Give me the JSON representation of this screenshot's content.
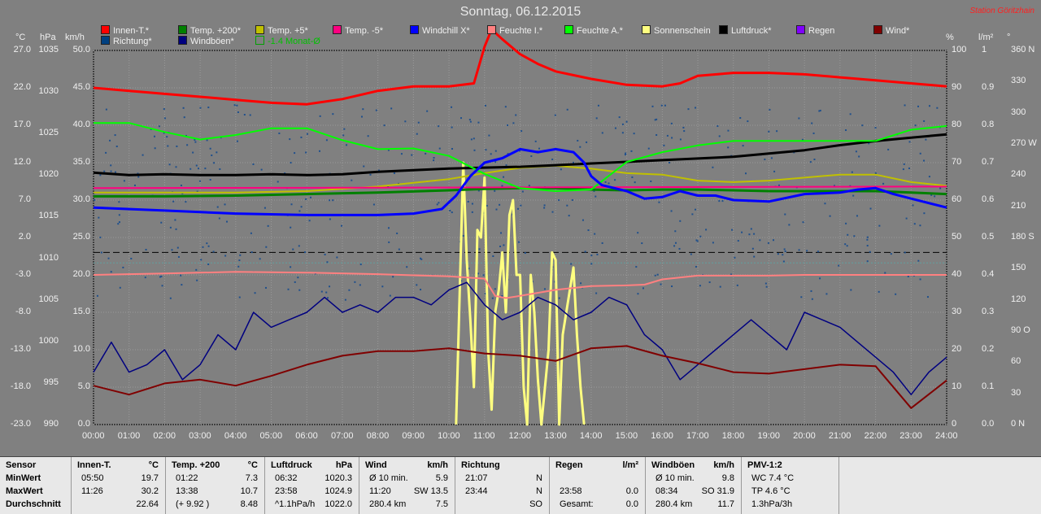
{
  "title": "Sonntag, 06.12.2015",
  "station": "Station Göritzhain",
  "units": {
    "c": "°C",
    "hpa": "hPa",
    "kmh": "km/h",
    "pct": "%",
    "lm2": "l/m²",
    "deg": "°"
  },
  "legend": [
    {
      "label": "Innen-T.*",
      "color": "#ff0000"
    },
    {
      "label": "Temp. +200*",
      "color": "#008000"
    },
    {
      "label": "Temp. +5*",
      "color": "#c0c000"
    },
    {
      "label": "Temp. -5*",
      "color": "#ff0080"
    },
    {
      "label": "Windchill X*",
      "color": "#0000ff"
    },
    {
      "label": "Feuchte I.*",
      "color": "#ff8080"
    },
    {
      "label": "Feuchte A.*",
      "color": "#00ff00"
    },
    {
      "label": "Sonnenschein",
      "color": "#ffff80"
    },
    {
      "label": "Luftdruck*",
      "color": "#000000"
    },
    {
      "label": "Regen",
      "color": "#8000ff"
    },
    {
      "label": "Wind*",
      "color": "#800000"
    },
    {
      "label": "Richtung*",
      "color": "#004080"
    },
    {
      "label": "Windböen*",
      "color": "#000080"
    },
    {
      "label": "-1.4 Monat-Ø",
      "color": "#00a000",
      "outline": true
    }
  ],
  "chart_data": {
    "type": "line",
    "x_ticks": [
      "00:00",
      "01:00",
      "02:00",
      "03:00",
      "04:00",
      "05:00",
      "06:00",
      "07:00",
      "08:00",
      "09:00",
      "10:00",
      "11:00",
      "12:00",
      "13:00",
      "14:00",
      "15:00",
      "16:00",
      "17:00",
      "18:00",
      "19:00",
      "20:00",
      "21:00",
      "22:00",
      "23:00",
      "24:00"
    ],
    "axis_c": [
      "27.0",
      "22.0",
      "17.0",
      "12.0",
      "7.0",
      "2.0",
      "-3.0",
      "-8.0",
      "-13.0",
      "-18.0",
      "-23.0"
    ],
    "axis_hpa": [
      "1035",
      "1030",
      "1025",
      "1020",
      "1015",
      "1010",
      "1005",
      "1000",
      "995",
      "990"
    ],
    "axis_kmh": [
      "50.0",
      "45.0",
      "40.0",
      "35.0",
      "30.0",
      "25.0",
      "20.0",
      "15.0",
      "10.0",
      "5.0",
      "0.0"
    ],
    "axis_pct": [
      "100",
      "90",
      "80",
      "70",
      "60",
      "50",
      "40",
      "30",
      "20",
      "10",
      "0"
    ],
    "axis_lm2": [
      "1",
      "0.9",
      "0.8",
      "0.7",
      "0.6",
      "0.5",
      "0.4",
      "0.3",
      "0.2",
      "0.1",
      "0.0"
    ],
    "axis_deg": [
      "360 N",
      "330",
      "300",
      "270 W",
      "240",
      "210",
      "180 S",
      "150",
      "120",
      "90 O",
      "60",
      "30",
      "0 N"
    ],
    "xlim": [
      0,
      24
    ],
    "series": [
      {
        "name": "Innen-T.*",
        "axis": "c",
        "x": [
          0,
          1,
          2,
          3,
          4,
          5,
          6,
          7,
          8,
          9,
          10,
          10.7,
          11,
          11.2,
          11.5,
          12,
          12.5,
          13,
          14,
          15,
          16,
          16.5,
          17,
          18,
          19,
          20,
          21,
          22,
          23,
          24
        ],
        "y": [
          22.0,
          21.6,
          21.2,
          20.8,
          20.4,
          20.0,
          19.8,
          20.5,
          21.6,
          22.2,
          22.2,
          22.6,
          27.5,
          29.8,
          28.5,
          26.5,
          25.2,
          24.2,
          23.2,
          22.4,
          22.2,
          22.6,
          23.6,
          24.0,
          24.0,
          23.8,
          23.4,
          23.0,
          22.6,
          22.2
        ]
      },
      {
        "name": "Temp. +200*",
        "axis": "c",
        "x": [
          0,
          2,
          4,
          6,
          8,
          10,
          11,
          12,
          13,
          14,
          15,
          16,
          17,
          18,
          19,
          20,
          21,
          22,
          23,
          24
        ],
        "y": [
          7.5,
          7.5,
          7.6,
          7.8,
          8.0,
          8.3,
          8.5,
          8.6,
          8.6,
          8.4,
          8.3,
          8.4,
          8.4,
          8.3,
          8.2,
          8.2,
          8.2,
          8.2,
          8.0,
          7.8
        ]
      },
      {
        "name": "Temp. +5*",
        "axis": "c",
        "x": [
          0,
          2,
          4,
          6,
          8,
          9,
          10,
          11,
          12,
          13,
          14,
          15,
          16,
          17,
          18,
          19,
          20,
          21,
          22,
          23,
          24
        ],
        "y": [
          8.0,
          8.0,
          8.0,
          8.2,
          8.8,
          9.3,
          9.8,
          10.6,
          11.3,
          11.6,
          11.2,
          10.6,
          10.4,
          9.6,
          9.4,
          9.6,
          10.0,
          10.4,
          10.4,
          9.4,
          8.9
        ]
      },
      {
        "name": "Temp. -5*",
        "axis": "c",
        "x": [
          0,
          24
        ],
        "y": [
          8.6,
          8.8
        ]
      },
      {
        "name": "Windchill X*",
        "axis": "c",
        "x": [
          0,
          2,
          4,
          6,
          8,
          9,
          9.8,
          10.2,
          10.6,
          11,
          11.5,
          12,
          12.5,
          13,
          13.5,
          13.8,
          14,
          14.3,
          15,
          15.5,
          16,
          16.5,
          17,
          17.5,
          18,
          19,
          20,
          21,
          21.5,
          22,
          22.5,
          23,
          24
        ],
        "y": [
          6.0,
          5.6,
          5.2,
          5.0,
          5.0,
          5.2,
          5.8,
          7.6,
          10.2,
          12.0,
          12.6,
          13.8,
          13.4,
          13.8,
          13.4,
          12.0,
          10.2,
          9.0,
          8.2,
          7.2,
          7.4,
          8.2,
          7.6,
          7.6,
          7.0,
          6.8,
          7.8,
          8.0,
          8.4,
          8.6,
          7.8,
          7.2,
          6.0
        ]
      },
      {
        "name": "Feuchte I.*",
        "axis": "pct",
        "x": [
          0,
          2,
          4,
          6,
          8,
          10,
          11,
          11.3,
          11.6,
          12,
          13,
          14,
          15,
          15.5,
          16,
          17,
          18,
          19,
          20,
          21,
          22,
          23,
          24
        ],
        "y": [
          40.0,
          40.4,
          40.8,
          40.6,
          40.2,
          39.6,
          39.0,
          34.4,
          33.8,
          34.4,
          36.0,
          37.0,
          37.2,
          37.4,
          38.8,
          39.8,
          39.8,
          39.8,
          40.0,
          40.0,
          40.0,
          40.0,
          40.0
        ]
      },
      {
        "name": "Feuchte A.*",
        "axis": "pct",
        "x": [
          0,
          1,
          2,
          3,
          4,
          5,
          6,
          7,
          8,
          9,
          10,
          11,
          12,
          13,
          14,
          15,
          16,
          17,
          18,
          19,
          20,
          21,
          22,
          23,
          24
        ],
        "y": [
          80.6,
          80.6,
          78.2,
          76.2,
          77.4,
          79.2,
          79.2,
          76.0,
          73.6,
          73.8,
          71.8,
          67.0,
          63.2,
          62.4,
          62.8,
          70.2,
          72.8,
          74.6,
          75.8,
          75.8,
          75.8,
          75.8,
          75.8,
          78.8,
          79.8
        ]
      },
      {
        "name": "Luftdruck*",
        "axis": "hpa",
        "x": [
          0,
          1,
          2,
          3,
          4,
          5,
          6,
          7,
          8,
          9,
          10,
          11,
          12,
          13,
          14,
          15,
          16,
          17,
          18,
          19,
          20,
          21,
          22,
          23,
          24
        ],
        "y": [
          1020.3,
          1020.0,
          1020.1,
          1020.0,
          1020.0,
          1020.1,
          1020.0,
          1020.1,
          1020.4,
          1020.6,
          1020.8,
          1020.9,
          1021.0,
          1021.2,
          1021.4,
          1021.6,
          1021.8,
          1022.0,
          1022.2,
          1022.6,
          1023.0,
          1023.6,
          1024.1,
          1024.5,
          1024.9
        ]
      },
      {
        "name": "Windböen*",
        "axis": "kmh",
        "x": [
          0,
          0.5,
          1,
          1.5,
          2,
          2.5,
          3,
          3.5,
          4,
          4.5,
          5,
          5.5,
          6,
          6.5,
          7,
          7.5,
          8,
          8.5,
          9,
          9.5,
          10,
          10.5,
          11,
          11.5,
          12,
          12.5,
          13,
          13.5,
          14,
          14.5,
          15,
          15.5,
          16,
          16.5,
          17,
          17.5,
          18,
          18.5,
          19,
          19.5,
          20,
          20.5,
          21,
          21.5,
          22,
          22.5,
          23,
          23.5,
          24
        ],
        "y": [
          7,
          11,
          7,
          8,
          10,
          6,
          8,
          12,
          10,
          15,
          13,
          14,
          15,
          17,
          15,
          16,
          15,
          17,
          17,
          16,
          18,
          19,
          16,
          14,
          15,
          17,
          16,
          14,
          15,
          17,
          16,
          12,
          10,
          6,
          8,
          10,
          12,
          14,
          12,
          10,
          15,
          14,
          13,
          11,
          9,
          7,
          4,
          7,
          9
        ]
      },
      {
        "name": "Wind*",
        "axis": "kmh",
        "x": [
          0,
          1,
          2,
          3,
          4,
          5,
          6,
          7,
          8,
          9,
          10,
          11,
          12,
          13,
          14,
          15,
          16,
          17,
          18,
          19,
          20,
          21,
          22,
          23,
          24
        ],
        "y": [
          5.2,
          4.0,
          5.5,
          6.0,
          5.2,
          6.5,
          8.0,
          9.2,
          9.8,
          9.8,
          10.2,
          9.5,
          9.2,
          8.5,
          10.2,
          10.5,
          9.2,
          8.2,
          7.0,
          6.8,
          7.4,
          8.0,
          7.8,
          2.2,
          5.9
        ]
      },
      {
        "name": "Sonnenschein",
        "axis": "kmh",
        "x": [
          10.2,
          10.4,
          10.5,
          10.6,
          10.7,
          10.8,
          10.9,
          11.0,
          11.1,
          11.2,
          11.3,
          11.4,
          11.5,
          11.6,
          11.7,
          11.8,
          11.9,
          12.0,
          12.1,
          12.2,
          12.3,
          12.4,
          12.5,
          12.6,
          12.7,
          12.8,
          12.9,
          13.0,
          13.1,
          13.2,
          13.3,
          13.4,
          13.5,
          13.6,
          13.7,
          13.8
        ],
        "y": [
          0,
          35,
          22,
          14,
          5,
          26,
          25,
          33,
          10,
          2,
          15,
          18,
          23,
          15,
          28,
          30,
          20,
          20,
          5,
          0,
          20,
          15,
          6,
          0,
          5,
          10,
          23,
          22,
          0,
          12,
          15,
          18,
          21,
          12,
          5,
          0
        ]
      }
    ]
  },
  "stats": {
    "sensor": {
      "header": "Sensor",
      "rows": [
        "MinWert",
        "MaxWert",
        "Durchschnitt"
      ]
    },
    "innen": {
      "header": "Innen-T.",
      "unit": "°C",
      "rows": [
        [
          "05:50",
          "19.7"
        ],
        [
          "11:26",
          "30.2"
        ],
        [
          "",
          "22.64"
        ]
      ]
    },
    "temp200": {
      "header": "Temp. +200",
      "unit": "°C",
      "rows": [
        [
          "01:22",
          "7.3"
        ],
        [
          "13:38",
          "10.7"
        ],
        [
          "(+ 9.92 )",
          "8.48"
        ]
      ]
    },
    "luftdruck": {
      "header": "Luftdruck",
      "unit": "hPa",
      "rows": [
        [
          "06:32",
          "1020.3"
        ],
        [
          "23:58",
          "1024.9"
        ],
        [
          "^1.1hPa/h",
          "1022.0"
        ]
      ]
    },
    "wind": {
      "header": "Wind",
      "unit": "km/h",
      "rows": [
        [
          "Ø 10 min.",
          "5.9"
        ],
        [
          "11:20",
          "SW 13.5"
        ],
        [
          "280.4 km",
          "7.5"
        ]
      ]
    },
    "richtung": {
      "header": "Richtung",
      "unit": "",
      "rows": [
        [
          "21:07",
          "N"
        ],
        [
          "23:44",
          "N"
        ],
        [
          "",
          "SO"
        ]
      ]
    },
    "regen": {
      "header": "Regen",
      "unit": "l/m²",
      "rows": [
        [
          "",
          ""
        ],
        [
          "23:58",
          "0.0"
        ],
        [
          "Gesamt:",
          "0.0"
        ]
      ]
    },
    "boeen": {
      "header": "Windböen",
      "unit": "km/h",
      "rows": [
        [
          "Ø 10 min.",
          "9.8"
        ],
        [
          "08:34",
          "SO 31.9"
        ],
        [
          "280.4 km",
          "11.7"
        ]
      ]
    },
    "pmv": {
      "header": "PMV-1:2",
      "unit": "",
      "rows": [
        [
          "WC 7.4 °C",
          ""
        ],
        [
          "TP 4.6 °C",
          ""
        ],
        [
          "1.3hPa/3h",
          ""
        ]
      ]
    }
  }
}
